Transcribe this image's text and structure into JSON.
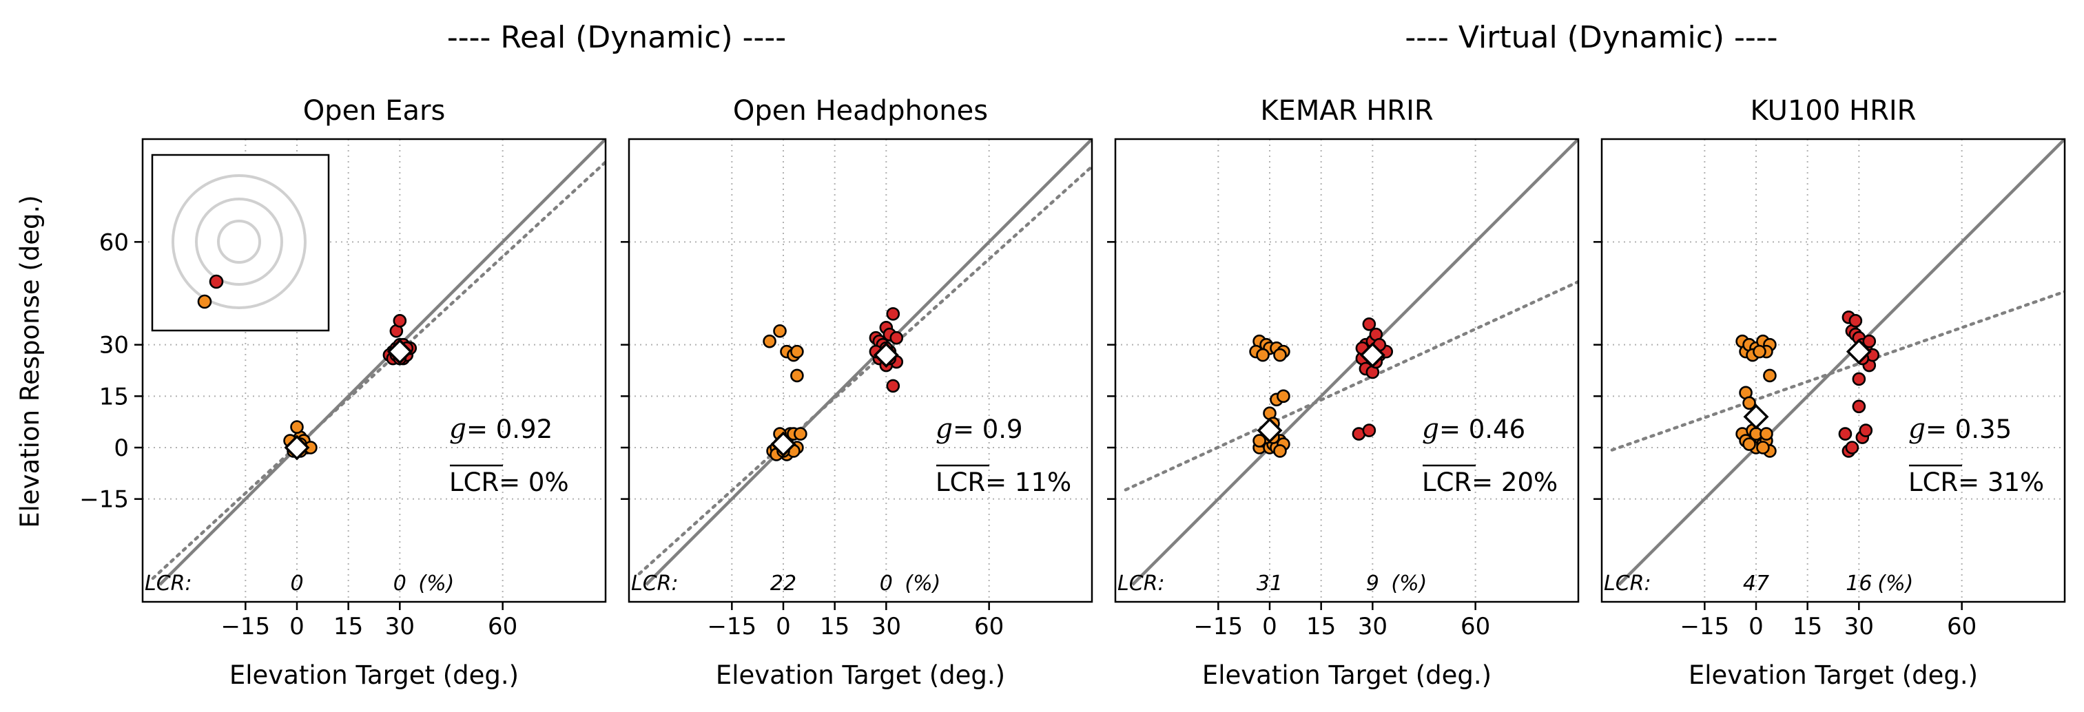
{
  "super_titles": [
    "---- Real (Dynamic) ----",
    "---- Virtual (Dynamic) ----"
  ],
  "xlabel": "Elevation Target (deg.)",
  "ylabel": "Elevation Response (deg.)",
  "lcr_prefix": "LCR:",
  "lcr_unit": "(%)",
  "g_symbol": "g",
  "lcr_symbol": "LCR",
  "colors": {
    "target_0": "#f28c1e",
    "target_30": "#d62728",
    "identity": "#808080",
    "fit": "#808080",
    "gridline": "#b0b0b0"
  },
  "chart_data": [
    {
      "type": "scatter",
      "title": "Open Ears",
      "xlim": [
        -45,
        90
      ],
      "ylim": [
        -45,
        90
      ],
      "xticks": [
        -15,
        0,
        15,
        30,
        60
      ],
      "yticks": [
        -15,
        0,
        15,
        30,
        60
      ],
      "g_text": "= 0.92",
      "lcr_text": "= 0%",
      "lcr_values": [
        {
          "x": 0,
          "text": "0"
        },
        {
          "x": 30,
          "text": "0"
        }
      ],
      "fit": {
        "slope": 0.92,
        "intercept": 0.5
      },
      "inset": true,
      "series": [
        {
          "target": 0,
          "color": "orange",
          "points": [
            [
              -1,
              0
            ],
            [
              0,
              1
            ],
            [
              1,
              0
            ],
            [
              2,
              1
            ],
            [
              0,
              2
            ],
            [
              1,
              3
            ],
            [
              0,
              6
            ],
            [
              -2,
              2
            ],
            [
              3,
              0
            ],
            [
              -1,
              -1
            ],
            [
              1,
              -1
            ],
            [
              2,
              2
            ],
            [
              4,
              0
            ],
            [
              0,
              0
            ],
            [
              1,
              1
            ]
          ]
        },
        {
          "target": 30,
          "color": "red",
          "points": [
            [
              28,
              28
            ],
            [
              29,
              29
            ],
            [
              30,
              30
            ],
            [
              29,
              34
            ],
            [
              30,
              37
            ],
            [
              31,
              26
            ],
            [
              32,
              27
            ],
            [
              27,
              27
            ],
            [
              33,
              29
            ],
            [
              28,
              26
            ],
            [
              30,
              28
            ],
            [
              31,
              30
            ],
            [
              29,
              27
            ],
            [
              32,
              29
            ],
            [
              30,
              26
            ]
          ]
        }
      ],
      "mean_markers": [
        [
          0,
          0
        ],
        [
          30,
          28
        ]
      ]
    },
    {
      "type": "scatter",
      "title": "Open Headphones",
      "xlim": [
        -45,
        90
      ],
      "ylim": [
        -45,
        90
      ],
      "xticks": [
        -15,
        0,
        15,
        30,
        60
      ],
      "yticks": [
        -15,
        0,
        15,
        30,
        60
      ],
      "g_text": "= 0.9",
      "lcr_text": "= 11%",
      "lcr_values": [
        {
          "x": 0,
          "text": "22"
        },
        {
          "x": 30,
          "text": "0"
        }
      ],
      "fit": {
        "slope": 0.9,
        "intercept": 1
      },
      "inset": false,
      "series": [
        {
          "target": 0,
          "color": "orange",
          "points": [
            [
              -4,
              31
            ],
            [
              -1,
              34
            ],
            [
              1,
              28
            ],
            [
              3,
              27
            ],
            [
              4,
              28
            ],
            [
              4,
              21
            ],
            [
              -3,
              -1
            ],
            [
              -2,
              0
            ],
            [
              0,
              1
            ],
            [
              1,
              2
            ],
            [
              2,
              4
            ],
            [
              3,
              4
            ],
            [
              -1,
              4
            ],
            [
              1,
              -2
            ],
            [
              4,
              0
            ],
            [
              0,
              2
            ],
            [
              -2,
              -2
            ],
            [
              2,
              0
            ],
            [
              5,
              4
            ],
            [
              3,
              -1
            ],
            [
              -1,
              1
            ],
            [
              0,
              -1
            ]
          ]
        },
        {
          "target": 30,
          "color": "red",
          "points": [
            [
              27,
              32
            ],
            [
              28,
              31
            ],
            [
              29,
              30
            ],
            [
              30,
              35
            ],
            [
              31,
              33
            ],
            [
              32,
              39
            ],
            [
              33,
              25
            ],
            [
              32,
              18
            ],
            [
              29,
              27
            ],
            [
              28,
              26
            ],
            [
              31,
              28
            ],
            [
              30,
              29
            ],
            [
              33,
              32
            ],
            [
              27,
              28
            ],
            [
              30,
              24
            ],
            [
              31,
              26
            ]
          ]
        }
      ],
      "mean_markers": [
        [
          0,
          1
        ],
        [
          30,
          27
        ]
      ]
    },
    {
      "type": "scatter",
      "title": "KEMAR HRIR",
      "xlim": [
        -45,
        90
      ],
      "ylim": [
        -45,
        90
      ],
      "xticks": [
        -15,
        0,
        15,
        30,
        60
      ],
      "yticks": [
        -15,
        0,
        15,
        30,
        60
      ],
      "g_text": "= 0.46",
      "lcr_text": "= 20%",
      "lcr_values": [
        {
          "x": 0,
          "text": "31"
        },
        {
          "x": 30,
          "text": "9"
        }
      ],
      "fit": {
        "slope": 0.46,
        "intercept": 7
      },
      "inset": false,
      "series": [
        {
          "target": 0,
          "color": "orange",
          "points": [
            [
              -3,
              31
            ],
            [
              -4,
              28
            ],
            [
              -1,
              30
            ],
            [
              0,
              29
            ],
            [
              2,
              29
            ],
            [
              4,
              28
            ],
            [
              3,
              27
            ],
            [
              -2,
              27
            ],
            [
              0,
              10
            ],
            [
              2,
              14
            ],
            [
              4,
              15
            ],
            [
              1,
              7
            ],
            [
              -3,
              0
            ],
            [
              -2,
              2
            ],
            [
              0,
              0
            ],
            [
              1,
              1
            ],
            [
              3,
              2
            ],
            [
              -1,
              3
            ],
            [
              2,
              0
            ],
            [
              4,
              1
            ],
            [
              0,
              4
            ],
            [
              -3,
              2
            ],
            [
              1,
              3
            ],
            [
              3,
              -1
            ]
          ]
        },
        {
          "target": 30,
          "color": "red",
          "points": [
            [
              26,
              4
            ],
            [
              29,
              5
            ],
            [
              27,
              26
            ],
            [
              28,
              30
            ],
            [
              29,
              36
            ],
            [
              30,
              31
            ],
            [
              31,
              33
            ],
            [
              32,
              27
            ],
            [
              33,
              28
            ],
            [
              28,
              23
            ],
            [
              30,
              22
            ],
            [
              31,
              25
            ],
            [
              29,
              27
            ],
            [
              34,
              28
            ],
            [
              27,
              29
            ],
            [
              32,
              30
            ],
            [
              30,
              26
            ]
          ]
        }
      ],
      "mean_markers": [
        [
          0,
          5
        ],
        [
          30,
          27
        ]
      ]
    },
    {
      "type": "scatter",
      "title": "KU100 HRIR",
      "xlim": [
        -45,
        90
      ],
      "ylim": [
        -45,
        90
      ],
      "xticks": [
        -15,
        0,
        15,
        30,
        60
      ],
      "yticks": [
        -15,
        0,
        15,
        30,
        60
      ],
      "g_text": "= 0.35",
      "lcr_text": "= 31%",
      "lcr_values": [
        {
          "x": 0,
          "text": "47"
        },
        {
          "x": 30,
          "text": "16"
        }
      ],
      "fit": {
        "slope": 0.35,
        "intercept": 14
      },
      "inset": false,
      "series": [
        {
          "target": 0,
          "color": "orange",
          "points": [
            [
              -4,
              31
            ],
            [
              -3,
              28
            ],
            [
              -2,
              30
            ],
            [
              0,
              29
            ],
            [
              2,
              31
            ],
            [
              4,
              30
            ],
            [
              3,
              28
            ],
            [
              -1,
              27
            ],
            [
              1,
              28
            ],
            [
              -3,
              16
            ],
            [
              -2,
              13
            ],
            [
              4,
              21
            ],
            [
              -4,
              4
            ],
            [
              -3,
              2
            ],
            [
              0,
              0
            ],
            [
              1,
              3
            ],
            [
              2,
              1
            ],
            [
              -1,
              5
            ],
            [
              3,
              2
            ],
            [
              4,
              -1
            ],
            [
              0,
              4
            ],
            [
              -2,
              1
            ],
            [
              2,
              0
            ],
            [
              3,
              4
            ]
          ]
        },
        {
          "target": 30,
          "color": "red",
          "points": [
            [
              26,
              4
            ],
            [
              27,
              -1
            ],
            [
              28,
              0
            ],
            [
              30,
              12
            ],
            [
              31,
              3
            ],
            [
              32,
              5
            ],
            [
              27,
              38
            ],
            [
              28,
              34
            ],
            [
              29,
              33
            ],
            [
              30,
              32
            ],
            [
              31,
              30
            ],
            [
              32,
              29
            ],
            [
              33,
              24
            ],
            [
              34,
              27
            ],
            [
              30,
              20
            ],
            [
              29,
              37
            ],
            [
              31,
              26
            ],
            [
              33,
              31
            ]
          ]
        }
      ],
      "mean_markers": [
        [
          0,
          9
        ],
        [
          30,
          28
        ]
      ]
    }
  ]
}
